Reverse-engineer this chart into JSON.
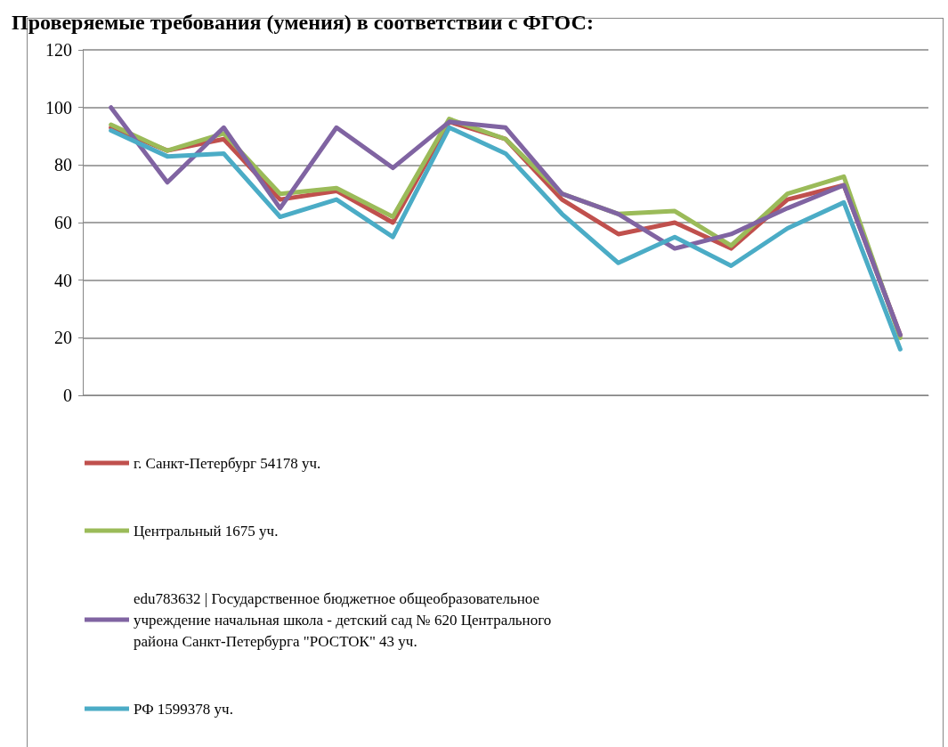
{
  "chart_data": {
    "type": "line",
    "title": "Проверяемые требования (умения) в соответствии с ФГОС:",
    "categories": [
      null,
      null,
      null,
      null,
      null,
      null,
      null,
      null,
      null,
      null,
      null,
      null,
      null,
      null,
      null
    ],
    "series": [
      {
        "name": "г. Санкт-Петербург 54178 уч.",
        "color": "#c0504d",
        "values": [
          93,
          85,
          89,
          68,
          71,
          60,
          95,
          89,
          68,
          56,
          60,
          51,
          68,
          73,
          21
        ]
      },
      {
        "name": "Центральный 1675 уч.",
        "color": "#9bbb59",
        "values": [
          94,
          85,
          91,
          70,
          72,
          62,
          96,
          89,
          70,
          63,
          64,
          52,
          70,
          76,
          20
        ]
      },
      {
        "name": "edu783632 | Государственное бюджетное общеобразовательное учреждение начальная школа - детский сад № 620 Центрального района Санкт-Петербурга \"РОСТОК\" 43 уч.",
        "color": "#8064a2",
        "values": [
          100,
          74,
          93,
          65,
          93,
          79,
          95,
          93,
          70,
          63,
          51,
          56,
          65,
          73,
          21
        ]
      },
      {
        "name": "РФ 1599378 уч.",
        "color": "#4bacc6",
        "values": [
          92,
          83,
          84,
          62,
          68,
          55,
          93,
          84,
          63,
          46,
          55,
          45,
          58,
          67,
          16
        ]
      }
    ],
    "ylim": [
      0,
      120
    ],
    "yticks": [
      0,
      20,
      40,
      60,
      80,
      100,
      120
    ],
    "grid": "y",
    "legend": "bottom",
    "tick_labels": "y",
    "marker": "none",
    "line_style": "solid"
  }
}
